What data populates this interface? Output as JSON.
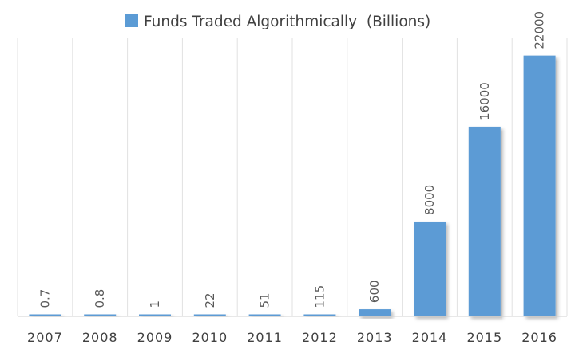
{
  "chart_data": {
    "type": "bar",
    "title": "",
    "xlabel": "",
    "ylabel": "",
    "legend": {
      "position": "top",
      "entries": [
        {
          "label": "Funds Traded Algorithmically  (Billions)",
          "color": "#5B9BD5"
        }
      ]
    },
    "grid": {
      "vertical": true,
      "horizontal": false
    },
    "categories": [
      "2007",
      "2008",
      "2009",
      "2010",
      "2011",
      "2012",
      "2013",
      "2014",
      "2015",
      "2016"
    ],
    "series": [
      {
        "name": "Funds Traded Algorithmically  (Billions)",
        "values": [
          0.7,
          0.8,
          1,
          22,
          51,
          115,
          600,
          8000,
          16000,
          22000
        ],
        "data_labels": [
          "0.7",
          "0.8",
          "1",
          "22",
          "51",
          "115",
          "600",
          "8000",
          "16000",
          "22000"
        ],
        "color": "#5B9BD5"
      }
    ],
    "ylim": [
      0,
      25000
    ]
  }
}
